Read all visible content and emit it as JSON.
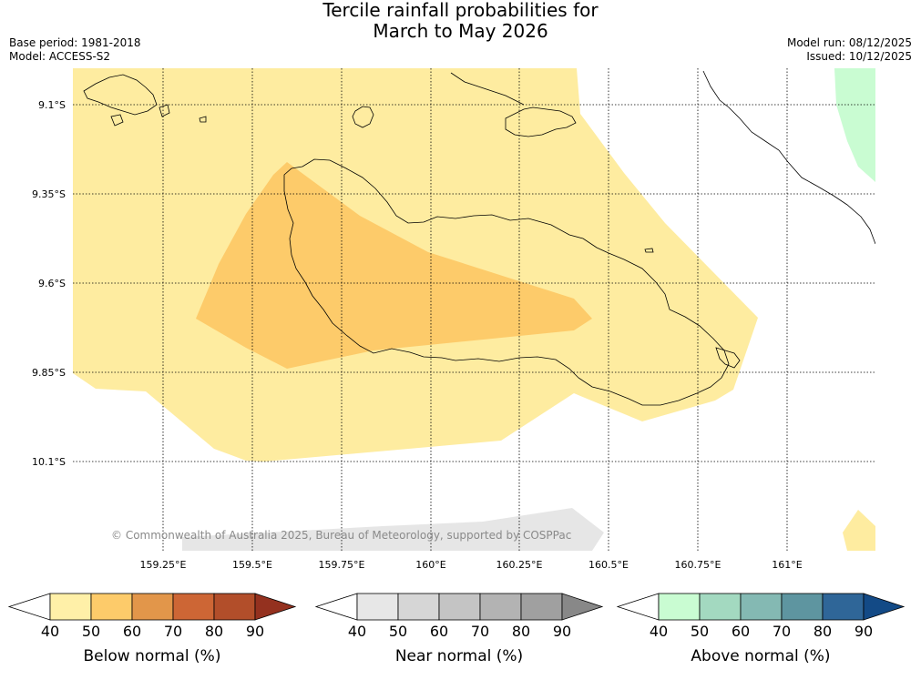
{
  "title": {
    "line1": "Tercile rainfall probabilities for",
    "line2": "March to May 2026"
  },
  "meta": {
    "base_period": "Base period: 1981-2018",
    "model": "Model: ACCESS-S2",
    "model_run": "Model run: 08/12/2025",
    "issued": "Issued: 10/12/2025"
  },
  "map": {
    "lat_labels": [
      "9.1°S",
      "9.35°S",
      "9.6°S",
      "9.85°S",
      "10.1°S"
    ],
    "lon_labels": [
      "159.25°E",
      "159.5°E",
      "159.75°E",
      "160°E",
      "160.25°E",
      "160.5°E",
      "160.75°E",
      "161°E"
    ],
    "copyright": "© Commonwealth of Australia 2025, Bureau of Meteorology, supported by COSPPac"
  },
  "colorbars": [
    {
      "label": "Below normal (%)",
      "ticks": [
        "40",
        "50",
        "60",
        "70",
        "80",
        "90"
      ],
      "colors": [
        "#fff0a8",
        "#fdcb6a",
        "#e2964a",
        "#cd6635",
        "#b24e2a",
        "#94311f"
      ]
    },
    {
      "label": "Near normal (%)",
      "ticks": [
        "40",
        "50",
        "60",
        "70",
        "80",
        "90"
      ],
      "colors": [
        "#e7e7e7",
        "#d6d6d6",
        "#c4c4c4",
        "#b3b3b3",
        "#a0a0a0",
        "#888888"
      ]
    },
    {
      "label": "Above normal (%)",
      "ticks": [
        "40",
        "50",
        "60",
        "70",
        "80",
        "90"
      ],
      "colors": [
        "#c9fcd2",
        "#a3d9c0",
        "#84b9b3",
        "#5e95a0",
        "#2f6698",
        "#134a86"
      ]
    }
  ]
}
